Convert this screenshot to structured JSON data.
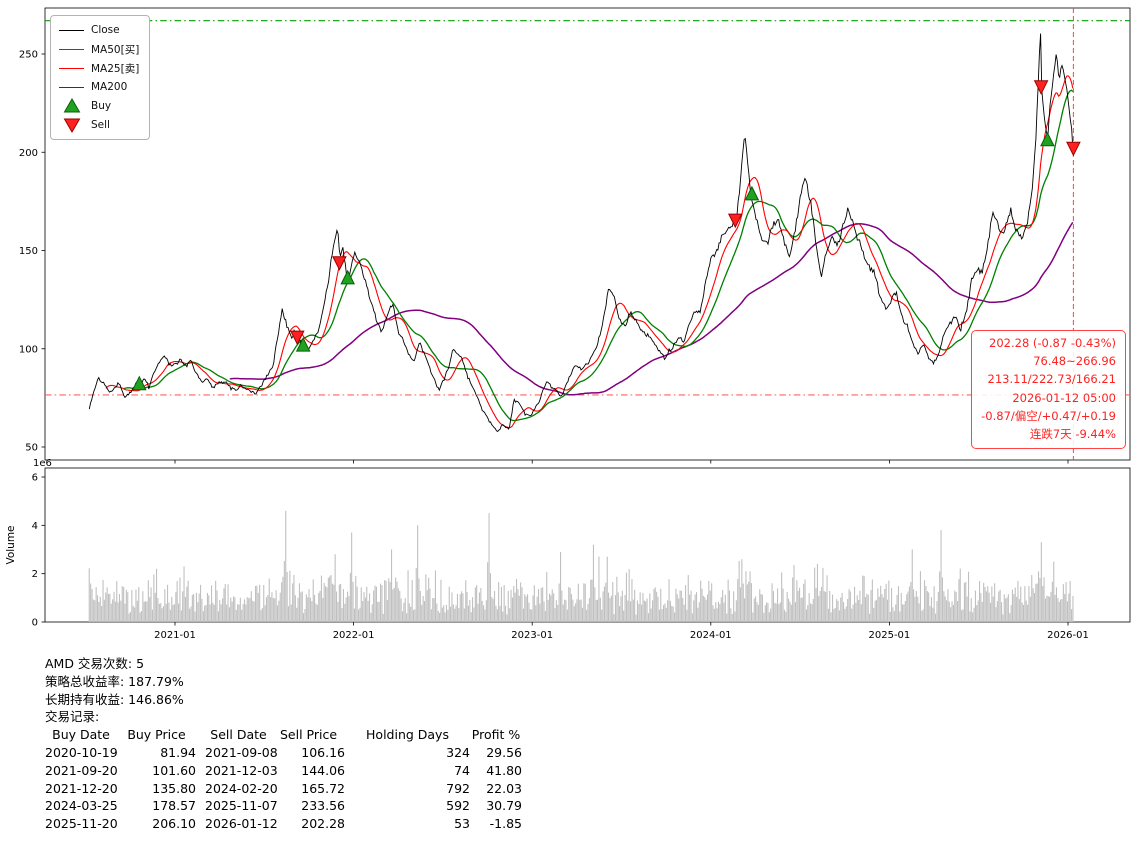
{
  "legend": {
    "items": [
      {
        "label": "Close",
        "type": "line",
        "color": "#000000",
        "icon": "close-line-sample"
      },
      {
        "label": "MA50[买]",
        "type": "line",
        "color": "#008000",
        "icon": "ma50-line-sample"
      },
      {
        "label": "MA25[卖]",
        "type": "line",
        "color": "#ff0000",
        "icon": "ma25-line-sample"
      },
      {
        "label": "MA200",
        "type": "line",
        "color": "#800080",
        "icon": "ma200-line-sample"
      },
      {
        "label": "Buy",
        "type": "marker-up",
        "color": "#21a121",
        "edge": "#0a5f0a",
        "icon": "buy-triangle-icon"
      },
      {
        "label": "Sell",
        "type": "marker-down",
        "color": "#ff2020",
        "edge": "#990000",
        "icon": "sell-triangle-icon"
      }
    ]
  },
  "annotation": {
    "color": "#ff2222",
    "lines": [
      "202.28 (-0.87 -0.43%)",
      "76.48~266.96",
      "213.11/222.73/166.21",
      "2026-01-12 05:00",
      "-0.87/偏空/+0.47/+0.19",
      "连跌7天 -9.44%"
    ]
  },
  "stats": {
    "symbol_line": "AMD 交易次数: 5",
    "strategy_return_line": "策略总收益率: 187.79%",
    "hold_return_line": "长期持有收益: 146.86%",
    "trades_title": "交易记录:",
    "table": {
      "headers": [
        "Buy Date",
        "Buy Price",
        "Sell Date",
        "Sell Price",
        "Holding Days",
        "Profit %"
      ],
      "rows": [
        [
          "2020-10-19",
          "81.94",
          "2021-09-08",
          "106.16",
          "324",
          "29.56"
        ],
        [
          "2021-09-20",
          "101.60",
          "2021-12-03",
          "144.06",
          "74",
          "41.80"
        ],
        [
          "2021-12-20",
          "135.80",
          "2024-02-20",
          "165.72",
          "792",
          "22.03"
        ],
        [
          "2024-03-25",
          "178.57",
          "2025-11-07",
          "233.56",
          "592",
          "30.79"
        ],
        [
          "2025-11-20",
          "206.10",
          "2026-01-12",
          "202.28",
          "53",
          "-1.85"
        ]
      ]
    }
  },
  "chart_data": [
    {
      "type": "line",
      "title": "",
      "xlabel": "",
      "ylabel": "",
      "xlim": [
        2020.27,
        2026.35
      ],
      "ylim": [
        43,
        272
      ],
      "yticks": [
        50,
        100,
        150,
        200,
        250
      ],
      "x_ticks": [
        {
          "year": 2021,
          "label": "2021-01"
        },
        {
          "year": 2022,
          "label": "2022-01"
        },
        {
          "year": 2023,
          "label": "2023-01"
        },
        {
          "year": 2024,
          "label": "2024-01"
        },
        {
          "year": 2025,
          "label": "2025-01"
        },
        {
          "year": 2026,
          "label": "2026-01"
        }
      ],
      "series": [
        {
          "name": "Close",
          "color": "#000000",
          "keypoints": [
            [
              2020.52,
              70
            ],
            [
              2020.545,
              78
            ],
            [
              2020.57,
              85
            ],
            [
              2020.6,
              83
            ],
            [
              2020.63,
              79
            ],
            [
              2020.66,
              82
            ],
            [
              2020.69,
              84
            ],
            [
              2020.72,
              77
            ],
            [
              2020.75,
              80
            ],
            [
              2020.78,
              83
            ],
            [
              2020.803,
              81.94
            ],
            [
              2020.83,
              85
            ],
            [
              2020.855,
              80
            ],
            [
              2020.88,
              88
            ],
            [
              2020.91,
              93
            ],
            [
              2020.94,
              96
            ],
            [
              2020.97,
              91
            ],
            [
              2021.0,
              92
            ],
            [
              2021.03,
              95
            ],
            [
              2021.06,
              90
            ],
            [
              2021.09,
              93
            ],
            [
              2021.12,
              87
            ],
            [
              2021.15,
              82
            ],
            [
              2021.18,
              84
            ],
            [
              2021.21,
              79
            ],
            [
              2021.25,
              82
            ],
            [
              2021.29,
              81
            ],
            [
              2021.33,
              78
            ],
            [
              2021.37,
              81
            ],
            [
              2021.41,
              80
            ],
            [
              2021.45,
              78
            ],
            [
              2021.48,
              82
            ],
            [
              2021.52,
              88
            ],
            [
              2021.55,
              94
            ],
            [
              2021.58,
              110
            ],
            [
              2021.6,
              122
            ],
            [
              2021.63,
              112
            ],
            [
              2021.65,
              106
            ],
            [
              2021.67,
              110
            ],
            [
              2021.688,
              106.16
            ],
            [
              2021.71,
              102
            ],
            [
              2021.72,
              101.6
            ],
            [
              2021.74,
              100
            ],
            [
              2021.77,
              104
            ],
            [
              2021.8,
              108
            ],
            [
              2021.83,
              120
            ],
            [
              2021.86,
              135
            ],
            [
              2021.88,
              148
            ],
            [
              2021.9,
              155
            ],
            [
              2021.912,
              162
            ],
            [
              2021.923,
              144.06
            ],
            [
              2021.94,
              150
            ],
            [
              2021.96,
              139
            ],
            [
              2021.97,
              135.8
            ],
            [
              2021.99,
              146
            ],
            [
              2022.01,
              150
            ],
            [
              2022.04,
              141
            ],
            [
              2022.07,
              132
            ],
            [
              2022.1,
              122
            ],
            [
              2022.13,
              112
            ],
            [
              2022.16,
              108
            ],
            [
              2022.19,
              118
            ],
            [
              2022.22,
              123
            ],
            [
              2022.25,
              109
            ],
            [
              2022.28,
              103
            ],
            [
              2022.31,
              96
            ],
            [
              2022.34,
              91
            ],
            [
              2022.37,
              102
            ],
            [
              2022.4,
              97
            ],
            [
              2022.44,
              88
            ],
            [
              2022.48,
              79
            ],
            [
              2022.52,
              88
            ],
            [
              2022.56,
              99
            ],
            [
              2022.6,
              96
            ],
            [
              2022.64,
              86
            ],
            [
              2022.68,
              78
            ],
            [
              2022.72,
              68
            ],
            [
              2022.76,
              62
            ],
            [
              2022.8,
              57
            ],
            [
              2022.84,
              61
            ],
            [
              2022.87,
              59
            ],
            [
              2022.9,
              74
            ],
            [
              2022.93,
              72
            ],
            [
              2022.96,
              66
            ],
            [
              2023.0,
              65
            ],
            [
              2023.04,
              72
            ],
            [
              2023.08,
              82
            ],
            [
              2023.12,
              81
            ],
            [
              2023.16,
              77
            ],
            [
              2023.2,
              84
            ],
            [
              2023.24,
              92
            ],
            [
              2023.28,
              88
            ],
            [
              2023.32,
              94
            ],
            [
              2023.36,
              100
            ],
            [
              2023.4,
              115
            ],
            [
              2023.43,
              130
            ],
            [
              2023.46,
              124
            ],
            [
              2023.49,
              114
            ],
            [
              2023.52,
              112
            ],
            [
              2023.55,
              117
            ],
            [
              2023.58,
              114
            ],
            [
              2023.62,
              108
            ],
            [
              2023.66,
              104
            ],
            [
              2023.7,
              101
            ],
            [
              2023.74,
              97
            ],
            [
              2023.78,
              103
            ],
            [
              2023.82,
              110
            ],
            [
              2023.85,
              106
            ],
            [
              2023.88,
              114
            ],
            [
              2023.91,
              122
            ],
            [
              2023.94,
              119
            ],
            [
              2023.97,
              135
            ],
            [
              2024.0,
              146
            ],
            [
              2024.04,
              153
            ],
            [
              2024.08,
              160
            ],
            [
              2024.11,
              163
            ],
            [
              2024.14,
              165.72
            ],
            [
              2024.16,
              180
            ],
            [
              2024.18,
              200
            ],
            [
              2024.19,
              211
            ],
            [
              2024.21,
              195
            ],
            [
              2024.23,
              178.57
            ],
            [
              2024.26,
              168
            ],
            [
              2024.29,
              157
            ],
            [
              2024.32,
              152
            ],
            [
              2024.35,
              161
            ],
            [
              2024.38,
              166
            ],
            [
              2024.41,
              156
            ],
            [
              2024.44,
              150
            ],
            [
              2024.47,
              159
            ],
            [
              2024.5,
              175
            ],
            [
              2024.53,
              186
            ],
            [
              2024.56,
              174
            ],
            [
              2024.59,
              152
            ],
            [
              2024.62,
              136
            ],
            [
              2024.65,
              148
            ],
            [
              2024.68,
              155
            ],
            [
              2024.71,
              150
            ],
            [
              2024.74,
              162
            ],
            [
              2024.77,
              170
            ],
            [
              2024.8,
              165
            ],
            [
              2024.83,
              157
            ],
            [
              2024.86,
              148
            ],
            [
              2024.89,
              141
            ],
            [
              2024.92,
              138
            ],
            [
              2024.95,
              126
            ],
            [
              2024.98,
              121
            ],
            [
              2025.01,
              124
            ],
            [
              2025.04,
              130
            ],
            [
              2025.07,
              119
            ],
            [
              2025.1,
              112
            ],
            [
              2025.13,
              106
            ],
            [
              2025.16,
              100
            ],
            [
              2025.19,
              104
            ],
            [
              2025.22,
              97
            ],
            [
              2025.25,
              95
            ],
            [
              2025.28,
              100
            ],
            [
              2025.31,
              110
            ],
            [
              2025.34,
              114
            ],
            [
              2025.37,
              119
            ],
            [
              2025.4,
              113
            ],
            [
              2025.43,
              121
            ],
            [
              2025.46,
              137
            ],
            [
              2025.49,
              143
            ],
            [
              2025.52,
              141
            ],
            [
              2025.55,
              156
            ],
            [
              2025.58,
              172
            ],
            [
              2025.6,
              166
            ],
            [
              2025.63,
              158
            ],
            [
              2025.66,
              165
            ],
            [
              2025.68,
              172
            ],
            [
              2025.71,
              162
            ],
            [
              2025.74,
              157
            ],
            [
              2025.77,
              164
            ],
            [
              2025.8,
              182
            ],
            [
              2025.82,
              208
            ],
            [
              2025.835,
              238
            ],
            [
              2025.846,
              265
            ],
            [
              2025.852,
              233.56
            ],
            [
              2025.862,
              224
            ],
            [
              2025.872,
              214
            ],
            [
              2025.886,
              206.1
            ],
            [
              2025.9,
              224
            ],
            [
              2025.92,
              240
            ],
            [
              2025.935,
              251
            ],
            [
              2025.95,
              236
            ],
            [
              2025.965,
              244
            ],
            [
              2025.98,
              238
            ],
            [
              2025.995,
              230
            ],
            [
              2026.005,
              222
            ],
            [
              2026.015,
              214
            ],
            [
              2026.025,
              208
            ],
            [
              2026.033,
              202.28
            ]
          ]
        },
        {
          "name": "MA50[买]",
          "color": "#008000",
          "derived_from": "Close",
          "window_days": 50
        },
        {
          "name": "MA25[卖]",
          "color": "#ff0000",
          "derived_from": "Close",
          "window_days": 25
        },
        {
          "name": "MA200",
          "color": "#800080",
          "derived_from": "Close",
          "window_days": 200
        }
      ],
      "markers": {
        "buy_color": "#21a121",
        "buy_edge": "#0a5f0a",
        "sell_color": "#ff2020",
        "sell_edge": "#990000",
        "buy": [
          {
            "date": "2020-10-19",
            "price": 81.94
          },
          {
            "date": "2021-09-20",
            "price": 101.6
          },
          {
            "date": "2021-12-20",
            "price": 135.8
          },
          {
            "date": "2024-03-25",
            "price": 178.57
          },
          {
            "date": "2025-11-20",
            "price": 206.1
          }
        ],
        "sell": [
          {
            "date": "2021-09-08",
            "price": 106.16
          },
          {
            "date": "2021-12-03",
            "price": 144.06
          },
          {
            "date": "2024-02-20",
            "price": 165.72
          },
          {
            "date": "2025-11-07",
            "price": 233.56
          },
          {
            "date": "2026-01-12",
            "price": 202.28
          }
        ]
      },
      "hlines": [
        {
          "y": 266.96,
          "style": "dashdot",
          "color": "#00a000"
        },
        {
          "y": 76.48,
          "style": "dashdot",
          "color": "#ff6060"
        }
      ],
      "vline": {
        "date": "2026-01-12",
        "style": "dashed",
        "color": "#ff4444"
      }
    },
    {
      "type": "bar",
      "ylabel": "Volume",
      "offset_label": "1e6",
      "yticks": [
        0,
        2,
        4,
        6
      ],
      "ylim": [
        0,
        6.4
      ],
      "bar_color": "#c0c0c0",
      "baseline_range_1e6": [
        0.3,
        2.0
      ],
      "spikes": [
        [
          2020.9,
          2.2
        ],
        [
          2021.05,
          2.3
        ],
        [
          2021.62,
          4.6
        ],
        [
          2021.9,
          2.8
        ],
        [
          2021.99,
          3.7
        ],
        [
          2022.21,
          3.0
        ],
        [
          2022.36,
          4.0
        ],
        [
          2022.76,
          4.5
        ],
        [
          2023.16,
          2.9
        ],
        [
          2023.34,
          3.2
        ],
        [
          2023.42,
          2.7
        ],
        [
          2024.17,
          2.6
        ],
        [
          2024.6,
          2.4
        ],
        [
          2025.13,
          3.0
        ],
        [
          2025.29,
          3.8
        ],
        [
          2025.85,
          3.3
        ],
        [
          2025.92,
          2.5
        ]
      ]
    }
  ]
}
